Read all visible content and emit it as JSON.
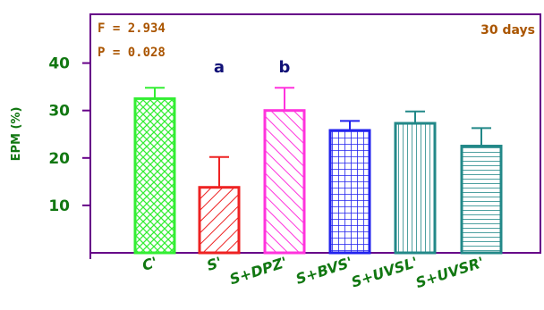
{
  "chart_data": {
    "type": "bar",
    "categories": [
      "C'",
      "S'",
      "S+DPZ'",
      "S+BVS'",
      "S+UVSL'",
      "S+UVSR'"
    ],
    "values": [
      32.5,
      13.8,
      30.0,
      25.8,
      27.3,
      22.5
    ],
    "error_upper": [
      34.8,
      20.2,
      34.8,
      27.8,
      29.8,
      26.3
    ],
    "significance": [
      "",
      "a",
      "b",
      "",
      "",
      ""
    ],
    "ylabel": "EPM (%)",
    "yticks": [
      10,
      20,
      30,
      40
    ],
    "ylim": [
      0,
      50
    ],
    "stats": [
      "F = 2.934",
      "P = 0.028"
    ],
    "period": "30 days",
    "grid": false,
    "colors": {
      "bars": [
        "#33ee33",
        "#ee2222",
        "#ff33dd",
        "#2222ee",
        "#228888",
        "#228888"
      ],
      "patterns": [
        "crosshatch",
        "diagonal",
        "diagonal",
        "grid",
        "vertical",
        "horizontal"
      ],
      "axis": "#660088",
      "ytext": "#117711",
      "stat_text": "#aa5500",
      "significance": "#111177",
      "xtext": "#117711"
    }
  }
}
